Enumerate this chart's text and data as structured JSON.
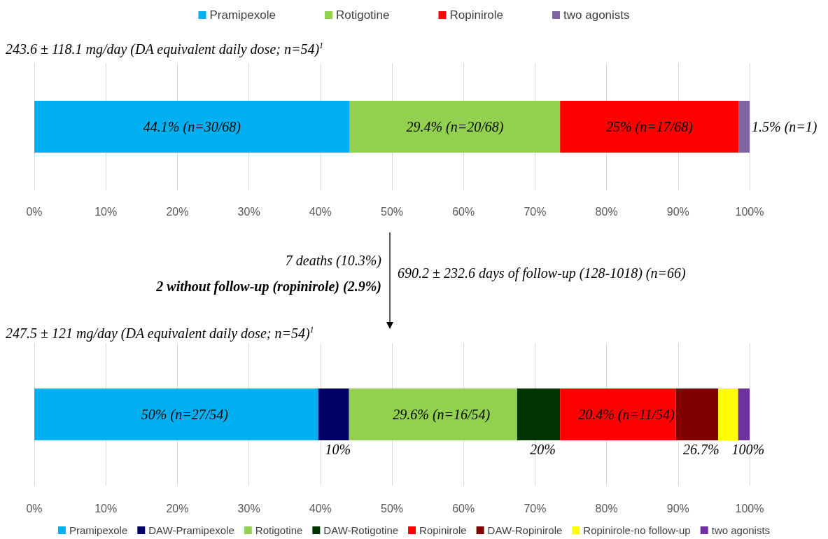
{
  "chart_data": [
    {
      "type": "bar",
      "orientation": "horizontal",
      "stacked": true,
      "title": "243.6 ± 118.1 mg/day (DA equivalent daily dose; n=54)$^{1}$",
      "categories": [
        null
      ],
      "series": [
        {
          "name": "Pramipexole",
          "color": "#00b0f0",
          "values": [
            44.1
          ],
          "value_labels": [
            "44.1% (n=30/68)"
          ]
        },
        {
          "name": "Rotigotine",
          "color": "#92d050",
          "values": [
            29.4
          ],
          "value_labels": [
            "29.4% (n=20/68)"
          ]
        },
        {
          "name": "Ropinirole",
          "color": "#ff0000",
          "values": [
            25
          ],
          "value_labels": [
            "25% (n=17/68)"
          ]
        },
        {
          "name": "two agonists",
          "color": "#8064a2",
          "values": [
            1.5
          ],
          "value_labels": [
            "1.5% (n=1)"
          ]
        }
      ],
      "xlim": [
        0,
        100
      ],
      "xticks": [
        {
          "value": 0,
          "label": "0%"
        },
        {
          "value": 10,
          "label": "10%"
        },
        {
          "value": 20,
          "label": "20%"
        },
        {
          "value": 30,
          "label": "30%"
        },
        {
          "value": 40,
          "label": "40%"
        },
        {
          "value": 50,
          "label": "50%"
        },
        {
          "value": 60,
          "label": "60%"
        },
        {
          "value": 70,
          "label": "70%"
        },
        {
          "value": 80,
          "label": "80%"
        },
        {
          "value": 90,
          "label": "90%"
        },
        {
          "value": 100,
          "label": "100%"
        }
      ],
      "grid": "x",
      "legend": "top",
      "annotations": [
        "7 deaths (10.3%)",
        "2 without follow-up (ropinirole) (2.9%)",
        "690.2 ± 232.6 days of follow-up (128-1018) (n=66)"
      ]
    },
    {
      "type": "bar",
      "orientation": "horizontal",
      "stacked": true,
      "title": "247.5 ± 121 mg/day (DA equivalent daily dose; n=54)$^{1}$",
      "categories": [
        null
      ],
      "series": [
        {
          "name": "Pramipexole",
          "color": "#00b0f0",
          "values": [
            39.7
          ]
        },
        {
          "name": "DAW-Pramipexole",
          "color": "#000066",
          "values": [
            4.3
          ]
        },
        {
          "name": "Rotigotine",
          "color": "#92d050",
          "values": [
            23.5
          ]
        },
        {
          "name": "DAW-Rotigotine",
          "color": "#003300",
          "values": [
            6.0
          ]
        },
        {
          "name": "Ropinirole",
          "color": "#ff0000",
          "values": [
            16.2
          ]
        },
        {
          "name": "DAW-Ropinirole",
          "color": "#800000",
          "values": [
            5.9
          ]
        },
        {
          "name": "Ropinirole-no follow-up",
          "color": "#ffff00",
          "values": [
            2.8
          ]
        },
        {
          "name": "two agonists",
          "color": "#7030a0",
          "values": [
            1.6
          ]
        }
      ],
      "xlim": [
        0,
        100
      ],
      "xticks": [
        {
          "value": 0,
          "label": "0%"
        },
        {
          "value": 10,
          "label": "10%"
        },
        {
          "value": 20,
          "label": "20%"
        },
        {
          "value": 30,
          "label": "30%"
        },
        {
          "value": 40,
          "label": "40%"
        },
        {
          "value": 50,
          "label": "50%"
        },
        {
          "value": 60,
          "label": "60%"
        },
        {
          "value": 70,
          "label": "70%"
        },
        {
          "value": 80,
          "label": "80%"
        },
        {
          "value": 90,
          "label": "90%"
        },
        {
          "value": 100,
          "label": "100%"
        }
      ],
      "grid": "x",
      "legend": "bottom",
      "annotations": [
        "50% (n=27/54)",
        "10%",
        "29.6% (n=16/54)",
        "20%",
        "20.4% (n=11/54)",
        "26.7%",
        "100%"
      ]
    }
  ]
}
